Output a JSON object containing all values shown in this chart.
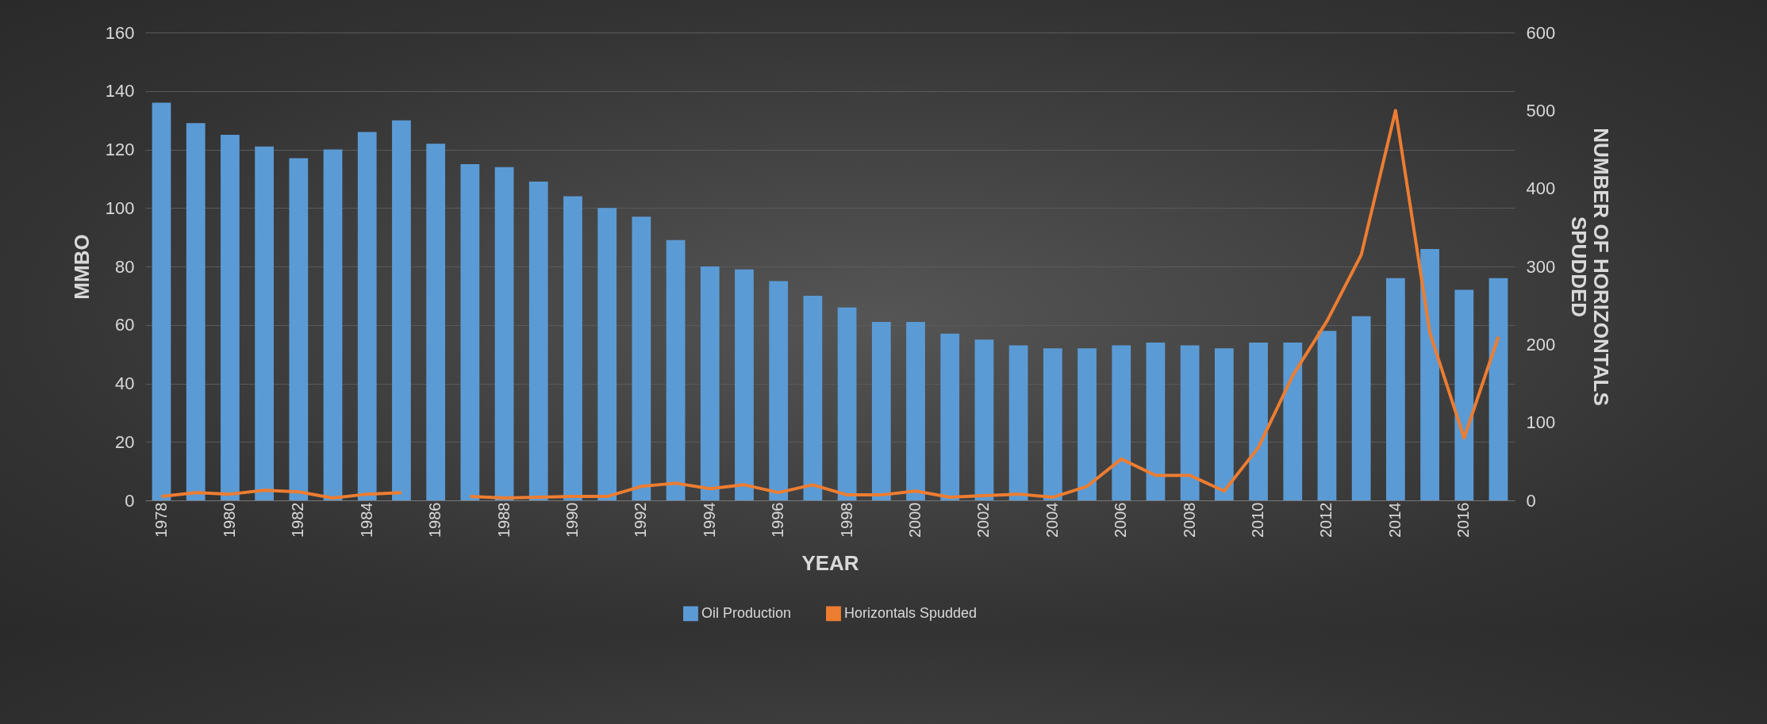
{
  "chart_data": {
    "type": "bar",
    "xlabel": "YEAR",
    "ylabel": "MMBO",
    "y2label": "NUMBER OF HORIZONTALS SPUDDED",
    "categories": [
      "1978",
      null,
      "1980",
      null,
      "1982",
      null,
      "1984",
      null,
      "1986",
      null,
      "1988",
      null,
      "1990",
      null,
      "1992",
      null,
      "1994",
      null,
      "1996",
      null,
      "1998",
      null,
      "2000",
      null,
      "2002",
      null,
      "2004",
      null,
      "2006",
      null,
      "2008",
      null,
      "2010",
      null,
      "2012",
      null,
      "2014",
      null,
      "2016",
      null
    ],
    "series": [
      {
        "name": "Oil Production",
        "color": "#5b9bd5",
        "values": [
          136,
          129,
          125,
          121,
          117,
          120,
          126,
          130,
          122,
          115,
          114,
          109,
          104,
          100,
          97,
          89,
          80,
          79,
          75,
          70,
          66,
          61,
          61,
          57,
          55,
          53,
          52,
          52,
          53,
          54,
          53,
          52,
          54,
          54,
          58,
          63,
          76,
          86,
          72,
          76
        ]
      },
      {
        "name": "Horizontals Spudded",
        "type": "line",
        "axis": "y2",
        "color": "#ed7d31",
        "values": [
          5,
          10,
          8,
          13,
          11,
          3,
          8,
          10,
          null,
          5,
          3,
          4,
          5,
          5,
          18,
          22,
          15,
          20,
          10,
          20,
          7,
          7,
          12,
          4,
          6,
          8,
          4,
          18,
          53,
          32,
          32,
          12,
          68,
          160,
          230,
          315,
          500,
          215,
          80,
          210
        ]
      }
    ],
    "ylim": [
      0,
      160
    ],
    "yticks": [
      0,
      20,
      40,
      60,
      80,
      100,
      120,
      140,
      160
    ],
    "y2lim": [
      0,
      600
    ],
    "y2ticks": [
      0,
      100,
      200,
      300,
      400,
      500,
      600
    ],
    "grid": "y",
    "legend": "bottom"
  }
}
